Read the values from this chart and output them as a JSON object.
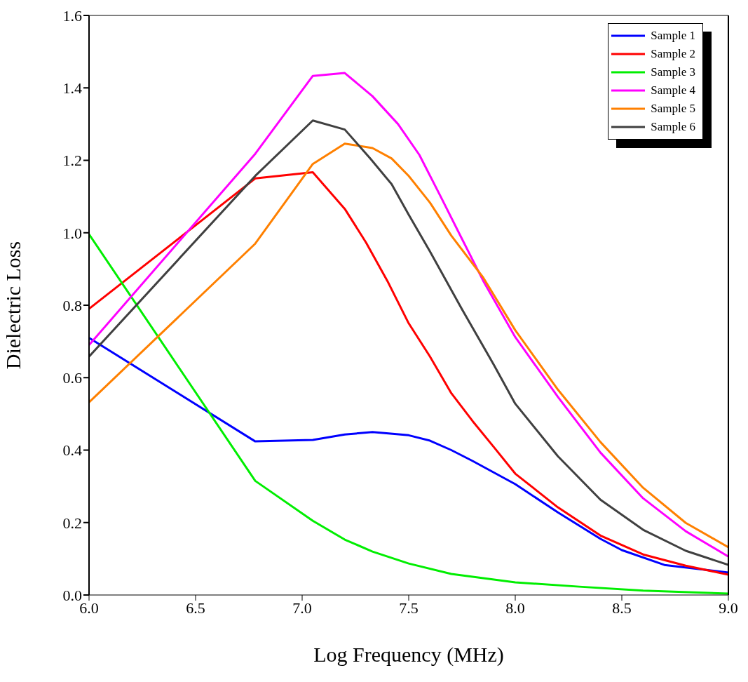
{
  "chart_data": {
    "type": "line",
    "xlabel": "Log Frequency (MHz)",
    "ylabel": "Dielectric Loss",
    "xlim": [
      6.0,
      9.0
    ],
    "ylim": [
      0.0,
      1.6
    ],
    "xticks": [
      {
        "value": 6,
        "label": "6.0"
      },
      {
        "value": 6.5,
        "label": "6.5"
      },
      {
        "value": 7,
        "label": "7.0"
      },
      {
        "value": 7.5,
        "label": "7.5"
      },
      {
        "value": 8,
        "label": "8.0"
      },
      {
        "value": 8.5,
        "label": "8.5"
      },
      {
        "value": 9,
        "label": "9.0"
      }
    ],
    "yticks": [
      {
        "value": 0,
        "label": "0.0"
      },
      {
        "value": 0.2,
        "label": "0.2"
      },
      {
        "value": 0.4,
        "label": "0.4"
      },
      {
        "value": 0.6,
        "label": "0.6"
      },
      {
        "value": 0.8,
        "label": "0.8"
      },
      {
        "value": 1.0,
        "label": "1.0"
      },
      {
        "value": 1.2,
        "label": "1.2"
      },
      {
        "value": 1.4,
        "label": "1.4"
      },
      {
        "value": 1.6,
        "label": "1.6"
      }
    ],
    "grid": false,
    "legend": "top right",
    "marker": "none",
    "line_style": "solid",
    "series": [
      {
        "name": "Sample 1",
        "color": "#0000ff",
        "x": [
          6.0,
          6.78,
          7.05,
          7.2,
          7.33,
          7.5,
          7.6,
          7.7,
          7.8,
          8.0,
          8.2,
          8.4,
          8.5,
          8.7,
          9.0
        ],
        "values": [
          0.71,
          0.424,
          0.428,
          0.443,
          0.45,
          0.441,
          0.426,
          0.4,
          0.37,
          0.306,
          0.228,
          0.155,
          0.124,
          0.083,
          0.062
        ]
      },
      {
        "name": "Sample 2",
        "color": "#ff0000",
        "x": [
          6.0,
          6.78,
          7.05,
          7.2,
          7.3,
          7.4,
          7.5,
          7.6,
          7.7,
          7.8,
          7.9,
          8.0,
          8.2,
          8.4,
          8.6,
          8.8,
          9.0
        ],
        "values": [
          0.79,
          1.15,
          1.167,
          1.066,
          0.973,
          0.867,
          0.75,
          0.658,
          0.557,
          0.48,
          0.408,
          0.335,
          0.242,
          0.164,
          0.112,
          0.081,
          0.056
        ]
      },
      {
        "name": "Sample 3",
        "color": "#00ee00",
        "x": [
          6.0,
          6.78,
          7.05,
          7.2,
          7.33,
          7.5,
          7.7,
          8.0,
          8.3,
          8.6,
          9.0
        ],
        "values": [
          0.996,
          0.315,
          0.205,
          0.153,
          0.12,
          0.087,
          0.058,
          0.035,
          0.023,
          0.012,
          0.004
        ]
      },
      {
        "name": "Sample 4",
        "color": "#ff00ff",
        "x": [
          6.0,
          6.78,
          7.05,
          7.2,
          7.33,
          7.45,
          7.55,
          7.65,
          7.75,
          7.85,
          8.0,
          8.2,
          8.4,
          8.6,
          8.8,
          9.0
        ],
        "values": [
          0.69,
          1.218,
          1.433,
          1.441,
          1.377,
          1.3,
          1.215,
          1.1,
          0.983,
          0.867,
          0.712,
          0.547,
          0.393,
          0.267,
          0.176,
          0.106
        ]
      },
      {
        "name": "Sample 5",
        "color": "#ff8000",
        "x": [
          6.0,
          6.78,
          7.05,
          7.2,
          7.33,
          7.42,
          7.5,
          7.6,
          7.7,
          7.85,
          8.0,
          8.2,
          8.4,
          8.6,
          8.8,
          9.0
        ],
        "values": [
          0.532,
          0.97,
          1.19,
          1.246,
          1.234,
          1.205,
          1.157,
          1.083,
          0.992,
          0.876,
          0.731,
          0.567,
          0.422,
          0.296,
          0.199,
          0.132
        ]
      },
      {
        "name": "Sample 6",
        "color": "#404040",
        "x": [
          6.0,
          6.78,
          7.05,
          7.2,
          7.32,
          7.42,
          7.5,
          7.6,
          7.75,
          7.9,
          8.0,
          8.2,
          8.4,
          8.6,
          8.8,
          9.0
        ],
        "values": [
          0.658,
          1.157,
          1.31,
          1.285,
          1.205,
          1.134,
          1.05,
          0.948,
          0.789,
          0.635,
          0.528,
          0.383,
          0.263,
          0.18,
          0.122,
          0.083
        ]
      }
    ]
  }
}
